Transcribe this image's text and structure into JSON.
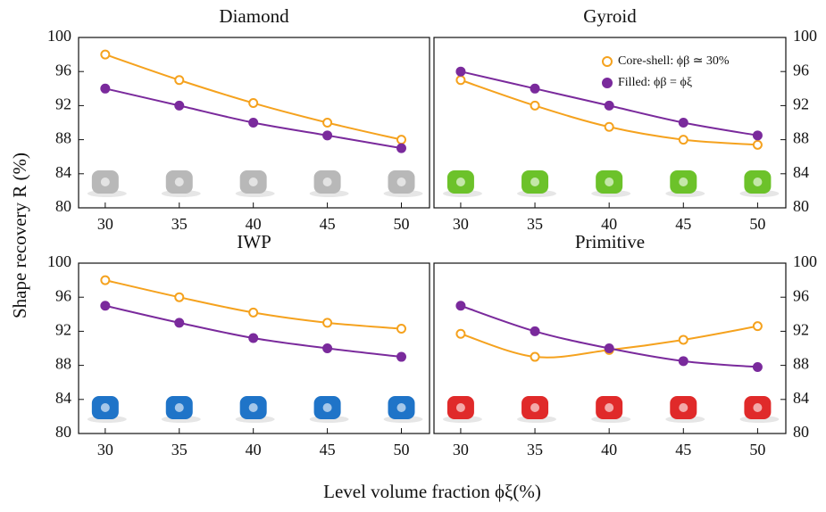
{
  "ylabel": "Shape recovery R (%)",
  "xlabel": "Level volume fraction ϕξ(%)",
  "chart_data": [
    {
      "type": "line",
      "title": "Diamond",
      "yaxis_side": "left",
      "x": [
        30,
        35,
        40,
        45,
        50
      ],
      "xlim": [
        28.2,
        51.9
      ],
      "xticks": [
        30,
        35,
        40,
        45,
        50
      ],
      "ylim": [
        80,
        100
      ],
      "yticks": [
        80,
        84,
        88,
        92,
        96,
        100
      ],
      "series": [
        {
          "color": "#f5a21e",
          "marker": "open",
          "values": [
            98,
            95,
            92.3,
            90,
            88
          ]
        },
        {
          "color": "#7a2a9c",
          "marker": "filled",
          "values": [
            94,
            92,
            90,
            88.5,
            87
          ]
        }
      ]
    },
    {
      "type": "line",
      "title": "Gyroid",
      "yaxis_side": "right",
      "legend": "upper right",
      "x": [
        30,
        35,
        40,
        45,
        50
      ],
      "xlim": [
        28.2,
        51.9
      ],
      "xticks": [
        30,
        35,
        40,
        45,
        50
      ],
      "ylim": [
        80,
        100
      ],
      "yticks": [
        80,
        84,
        88,
        92,
        96,
        100
      ],
      "series": [
        {
          "name": "Core-shell:  ϕβ ≃ 30%",
          "color": "#f5a21e",
          "marker": "open",
          "values": [
            95,
            92,
            89.5,
            88,
            87.4
          ]
        },
        {
          "name": "Filled:  ϕβ = ϕξ",
          "color": "#7a2a9c",
          "marker": "filled",
          "values": [
            96,
            94,
            92,
            90,
            88.5
          ]
        }
      ]
    },
    {
      "type": "line",
      "title": "IWP",
      "yaxis_side": "left",
      "x": [
        30,
        35,
        40,
        45,
        50
      ],
      "xlim": [
        28.2,
        51.9
      ],
      "xticks": [
        30,
        35,
        40,
        45,
        50
      ],
      "ylim": [
        80,
        100
      ],
      "yticks": [
        80,
        84,
        88,
        92,
        96,
        100
      ],
      "series": [
        {
          "color": "#f5a21e",
          "marker": "open",
          "values": [
            98,
            96,
            94.2,
            93,
            92.3
          ]
        },
        {
          "color": "#7a2a9c",
          "marker": "filled",
          "values": [
            95,
            93,
            91.2,
            90,
            89
          ]
        }
      ]
    },
    {
      "type": "line",
      "title": "Primitive",
      "yaxis_side": "right",
      "x": [
        30,
        35,
        40,
        45,
        50
      ],
      "xlim": [
        28.2,
        51.9
      ],
      "xticks": [
        30,
        35,
        40,
        45,
        50
      ],
      "ylim": [
        80,
        100
      ],
      "yticks": [
        80,
        84,
        88,
        92,
        96,
        100
      ],
      "series": [
        {
          "color": "#f5a21e",
          "marker": "open",
          "values": [
            91.7,
            89,
            89.8,
            91,
            92.6
          ]
        },
        {
          "color": "#7a2a9c",
          "marker": "filled",
          "values": [
            95,
            92,
            90,
            88.5,
            87.8
          ]
        }
      ]
    }
  ]
}
